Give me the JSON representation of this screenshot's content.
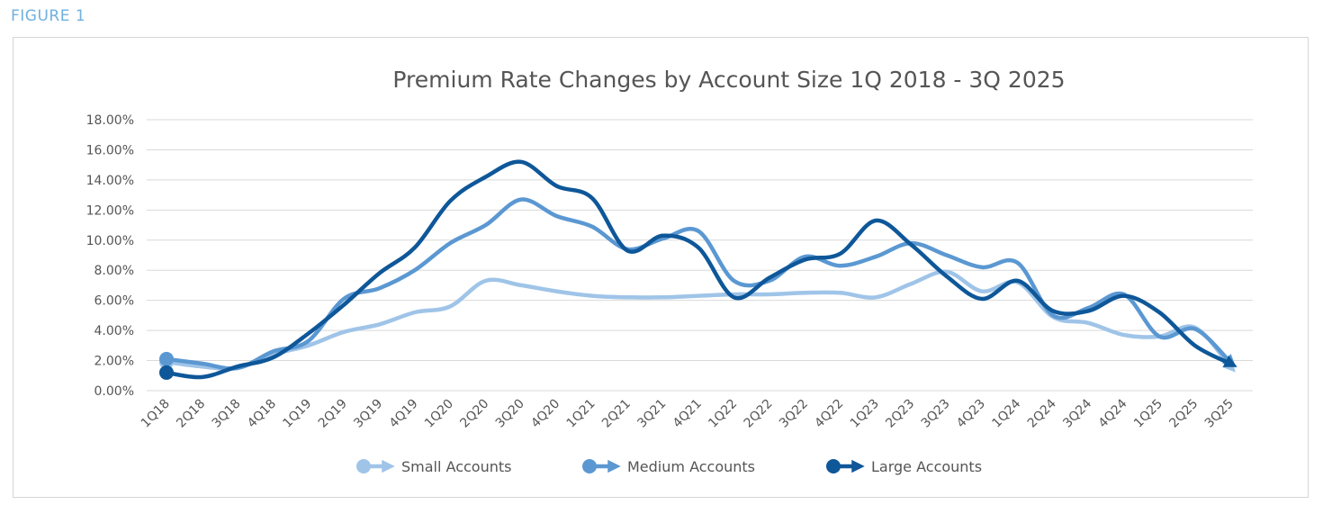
{
  "figure_label": "FIGURE 1",
  "chart_data": {
    "type": "line",
    "title": "Premium Rate Changes by Account Size 1Q 2018 - 3Q 2025",
    "xlabel": "",
    "ylabel": "",
    "ylim": [
      0,
      18
    ],
    "ytick_values": [
      0,
      2,
      4,
      6,
      8,
      10,
      12,
      14,
      16,
      18
    ],
    "ytick_labels": [
      "0.00%",
      "2.00%",
      "4.00%",
      "6.00%",
      "8.00%",
      "10.00%",
      "12.00%",
      "14.00%",
      "16.00%",
      "18.00%"
    ],
    "categories": [
      "1Q18",
      "2Q18",
      "3Q18",
      "4Q18",
      "1Q19",
      "2Q19",
      "3Q19",
      "4Q19",
      "1Q20",
      "2Q20",
      "3Q20",
      "4Q20",
      "1Q21",
      "2Q21",
      "3Q21",
      "4Q21",
      "1Q22",
      "2Q22",
      "3Q22",
      "4Q22",
      "1Q23",
      "2Q23",
      "3Q23",
      "4Q23",
      "1Q24",
      "2Q24",
      "3Q24",
      "4Q24",
      "1Q25",
      "2Q25",
      "3Q25"
    ],
    "grid": true,
    "legend_position": "bottom",
    "series": [
      {
        "name": "Small Accounts",
        "color": "#9fc4e8",
        "values": [
          1.9,
          1.6,
          1.5,
          2.4,
          3.0,
          3.9,
          4.4,
          5.2,
          5.6,
          7.3,
          7.0,
          6.6,
          6.3,
          6.2,
          6.2,
          6.3,
          6.4,
          6.4,
          6.5,
          6.5,
          6.2,
          7.1,
          7.9,
          6.6,
          7.2,
          4.9,
          4.5,
          3.7,
          3.6,
          4.2,
          1.6
        ]
      },
      {
        "name": "Medium Accounts",
        "color": "#5b98d2",
        "values": [
          2.1,
          1.8,
          1.5,
          2.6,
          3.3,
          6.1,
          6.8,
          8.0,
          9.8,
          11.0,
          12.7,
          11.6,
          10.9,
          9.4,
          10.1,
          10.6,
          7.3,
          7.3,
          8.9,
          8.3,
          8.9,
          9.8,
          9.0,
          8.2,
          8.5,
          5.0,
          5.5,
          6.4,
          3.6,
          4.1,
          1.9
        ]
      },
      {
        "name": "Large Accounts",
        "color": "#0e5799",
        "values": [
          1.2,
          0.9,
          1.6,
          2.2,
          3.8,
          5.7,
          7.8,
          9.5,
          12.6,
          14.2,
          15.2,
          13.6,
          12.8,
          9.3,
          10.3,
          9.5,
          6.2,
          7.5,
          8.7,
          9.1,
          11.3,
          9.7,
          7.6,
          6.1,
          7.3,
          5.3,
          5.3,
          6.3,
          5.2,
          3.0,
          1.8
        ]
      }
    ]
  }
}
